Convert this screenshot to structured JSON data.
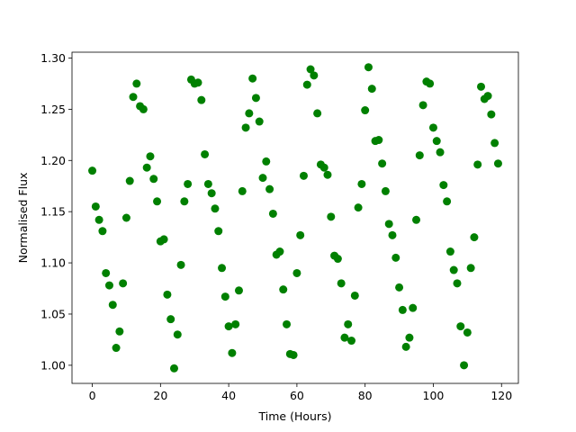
{
  "chart_data": {
    "type": "scatter",
    "xlabel": "Time (Hours)",
    "ylabel": "Normalised Flux",
    "color": "#008000",
    "x": [
      0,
      1,
      2,
      3,
      4,
      5,
      6,
      7,
      8,
      9,
      10,
      11,
      12,
      13,
      14,
      15,
      16,
      17,
      18,
      19,
      20,
      21,
      22,
      23,
      24,
      25,
      26,
      27,
      28,
      29,
      30,
      31,
      32,
      33,
      34,
      35,
      36,
      37,
      38,
      39,
      40,
      41,
      42,
      43,
      44,
      45,
      46,
      47,
      48,
      49,
      50,
      51,
      52,
      53,
      54,
      55,
      56,
      57,
      58,
      59,
      60,
      61,
      62,
      63,
      64,
      65,
      66,
      67,
      68,
      69,
      70,
      71,
      72,
      73,
      74,
      75,
      76,
      77,
      78,
      79,
      80,
      81,
      82,
      83,
      84,
      85,
      86,
      87,
      88,
      89,
      90,
      91,
      92,
      93,
      94,
      95,
      96,
      97,
      98,
      99,
      100,
      101,
      102,
      103,
      104,
      105,
      106,
      107,
      108,
      109,
      110,
      111,
      112,
      113,
      114,
      115,
      116,
      117,
      118,
      119
    ],
    "y": [
      1.19,
      1.155,
      1.142,
      1.131,
      1.09,
      1.078,
      1.059,
      1.017,
      1.033,
      1.08,
      1.144,
      1.18,
      1.262,
      1.275,
      1.253,
      1.25,
      1.193,
      1.204,
      1.182,
      1.16,
      1.121,
      1.123,
      1.069,
      1.045,
      0.997,
      1.03,
      1.098,
      1.16,
      1.177,
      1.279,
      1.275,
      1.276,
      1.259,
      1.206,
      1.177,
      1.168,
      1.153,
      1.131,
      1.095,
      1.067,
      1.038,
      1.012,
      1.04,
      1.073,
      1.17,
      1.232,
      1.246,
      1.28,
      1.261,
      1.238,
      1.183,
      1.199,
      1.172,
      1.148,
      1.108,
      1.111,
      1.074,
      1.04,
      1.011,
      1.01,
      1.09,
      1.127,
      1.185,
      1.274,
      1.289,
      1.283,
      1.246,
      1.196,
      1.193,
      1.186,
      1.145,
      1.107,
      1.104,
      1.08,
      1.027,
      1.04,
      1.024,
      1.068,
      1.154,
      1.177,
      1.249,
      1.291,
      1.27,
      1.219,
      1.22,
      1.197,
      1.17,
      1.138,
      1.127,
      1.105,
      1.076,
      1.054,
      1.018,
      1.027,
      1.056,
      1.142,
      1.205,
      1.254,
      1.277,
      1.275,
      1.232,
      1.219,
      1.208,
      1.176,
      1.16,
      1.111,
      1.093,
      1.08,
      1.038,
      1.0,
      1.032,
      1.095,
      1.125,
      1.196,
      1.272,
      1.26,
      1.263,
      1.245,
      1.217,
      1.197
    ],
    "xlim": [
      -5.95,
      124.95
    ],
    "ylim": [
      0.9823,
      1.3057
    ],
    "xticks": [
      0,
      20,
      40,
      60,
      80,
      100,
      120
    ],
    "yticks": [
      {
        "value": 1.0,
        "label": "1.00"
      },
      1.05,
      {
        "value": 1.1,
        "label": "1.10"
      },
      1.15,
      {
        "value": 1.2,
        "label": "1.20"
      },
      1.25,
      {
        "value": 1.3,
        "label": "1.30"
      }
    ]
  }
}
